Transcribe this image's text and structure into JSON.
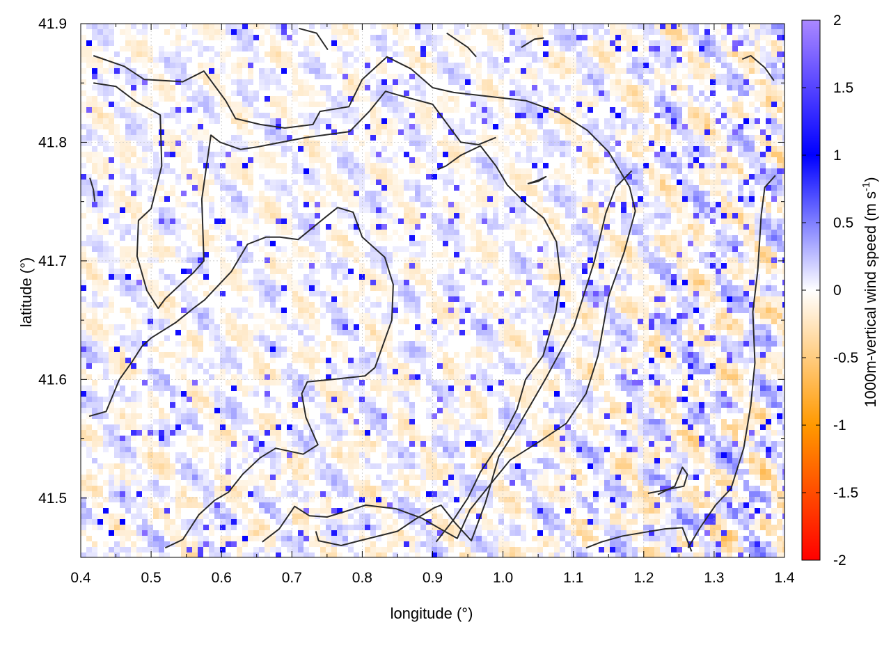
{
  "chart_data": {
    "type": "heatmap",
    "title": "",
    "xlabel": "longitude (°)",
    "ylabel": "latitude (°)",
    "xlim": [
      0.4,
      1.4
    ],
    "ylim": [
      41.45,
      41.9
    ],
    "x_ticks": [
      0.4,
      0.5,
      0.6,
      0.7,
      0.8,
      0.9,
      1.0,
      1.1,
      1.2,
      1.3,
      1.4
    ],
    "y_ticks": [
      41.5,
      41.6,
      41.7,
      41.8,
      41.9
    ],
    "grid": true,
    "colorbar": {
      "label_main": "1000m-vertical wind speed (m s",
      "label_sup": "-1",
      "label_end": ")",
      "range": [
        -2,
        2
      ],
      "ticks": [
        2,
        1.5,
        1,
        0.5,
        0,
        -0.5,
        -1,
        -1.5,
        -2
      ],
      "colors": {
        "-2": "#ff0000",
        "-1": "#ff9900",
        "0": "#ffffff",
        "1": "#0000ff",
        "2": "#aa88ff"
      }
    },
    "contours": [
      [
        [
          0.418,
          41.873
        ],
        [
          0.462,
          41.864
        ],
        [
          0.49,
          41.853
        ],
        [
          0.545,
          41.851
        ],
        [
          0.575,
          41.86
        ],
        [
          0.606,
          41.835
        ],
        [
          0.62,
          41.82
        ],
        [
          0.655,
          41.815
        ],
        [
          0.69,
          41.812
        ],
        [
          0.73,
          41.815
        ],
        [
          0.74,
          41.826
        ],
        [
          0.781,
          41.83
        ],
        [
          0.8,
          41.853
        ],
        [
          0.835,
          41.872
        ],
        [
          0.869,
          41.862
        ],
        [
          0.9,
          41.846
        ],
        [
          0.93,
          41.842
        ],
        [
          0.99,
          41.838
        ],
        [
          1.033,
          41.835
        ],
        [
          1.08,
          41.825
        ],
        [
          1.12,
          41.81
        ],
        [
          1.15,
          41.792
        ],
        [
          1.18,
          41.762
        ],
        [
          1.188,
          41.742
        ],
        [
          1.172,
          41.707
        ],
        [
          1.15,
          41.67
        ],
        [
          1.135,
          41.62
        ],
        [
          1.118,
          41.588
        ],
        [
          1.09,
          41.563
        ],
        [
          1.05,
          41.547
        ],
        [
          1.01,
          41.532
        ],
        [
          0.984,
          41.513
        ],
        [
          0.953,
          41.49
        ],
        [
          0.935,
          41.466
        ],
        [
          0.908,
          41.475
        ],
        [
          0.885,
          41.483
        ],
        [
          0.848,
          41.491
        ],
        [
          0.805,
          41.494
        ],
        [
          0.75,
          41.484
        ],
        [
          0.725,
          41.485
        ],
        [
          0.704,
          41.493
        ],
        [
          0.682,
          41.474
        ],
        [
          0.658,
          41.463
        ]
      ],
      [
        [
          0.418,
          41.85
        ],
        [
          0.45,
          41.847
        ],
        [
          0.479,
          41.834
        ],
        [
          0.513,
          41.823
        ],
        [
          0.514,
          41.802
        ],
        [
          0.515,
          41.78
        ],
        [
          0.5,
          41.744
        ],
        [
          0.482,
          41.734
        ],
        [
          0.48,
          41.704
        ],
        [
          0.494,
          41.675
        ],
        [
          0.51,
          41.66
        ],
        [
          0.52,
          41.668
        ],
        [
          0.545,
          41.682
        ],
        [
          0.56,
          41.69
        ],
        [
          0.575,
          41.7
        ],
        [
          0.572,
          41.752
        ],
        [
          0.585,
          41.806
        ],
        [
          0.598,
          41.8
        ],
        [
          0.627,
          41.794
        ],
        [
          0.65,
          41.796
        ],
        [
          0.72,
          41.804
        ],
        [
          0.782,
          41.809
        ],
        [
          0.81,
          41.826
        ],
        [
          0.833,
          41.843
        ],
        [
          0.85,
          41.84
        ],
        [
          0.9,
          41.832
        ],
        [
          0.94,
          41.8
        ],
        [
          0.965,
          41.798
        ],
        [
          0.99,
          41.804
        ]
      ],
      [
        [
          0.412,
          41.569
        ],
        [
          0.436,
          41.573
        ],
        [
          0.455,
          41.6
        ],
        [
          0.473,
          41.615
        ],
        [
          0.487,
          41.628
        ],
        [
          0.5,
          41.635
        ],
        [
          0.535,
          41.648
        ],
        [
          0.56,
          41.66
        ],
        [
          0.576,
          41.667
        ],
        [
          0.614,
          41.691
        ],
        [
          0.637,
          41.714
        ],
        [
          0.663,
          41.72
        ],
        [
          0.683,
          41.72
        ],
        [
          0.709,
          41.718
        ],
        [
          0.744,
          41.735
        ],
        [
          0.765,
          41.745
        ],
        [
          0.787,
          41.741
        ],
        [
          0.8,
          41.72
        ],
        [
          0.832,
          41.703
        ],
        [
          0.844,
          41.68
        ],
        [
          0.842,
          41.65
        ],
        [
          0.818,
          41.61
        ],
        [
          0.804,
          41.603
        ],
        [
          0.758,
          41.6
        ],
        [
          0.722,
          41.598
        ],
        [
          0.714,
          41.588
        ],
        [
          0.72,
          41.568
        ],
        [
          0.737,
          41.545
        ],
        [
          0.716,
          41.537
        ],
        [
          0.677,
          41.542
        ],
        [
          0.655,
          41.534
        ],
        [
          0.63,
          41.52
        ],
        [
          0.61,
          41.505
        ],
        [
          0.59,
          41.498
        ],
        [
          0.568,
          41.486
        ],
        [
          0.545,
          41.465
        ],
        [
          0.52,
          41.458
        ]
      ],
      [
        [
          0.734,
          41.472
        ],
        [
          0.738,
          41.464
        ],
        [
          0.77,
          41.46
        ],
        [
          0.796,
          41.464
        ],
        [
          0.85,
          41.472
        ],
        [
          0.875,
          41.482
        ],
        [
          0.903,
          41.492
        ],
        [
          0.912,
          41.494
        ],
        [
          0.932,
          41.479
        ],
        [
          0.955,
          41.464
        ],
        [
          0.975,
          41.496
        ],
        [
          0.994,
          41.535
        ],
        [
          1.021,
          41.56
        ],
        [
          1.06,
          41.6
        ],
        [
          1.101,
          41.645
        ],
        [
          1.13,
          41.7
        ],
        [
          1.146,
          41.74
        ],
        [
          1.16,
          41.762
        ],
        [
          1.183,
          41.776
        ]
      ],
      [
        [
          0.907,
          41.777
        ],
        [
          0.919,
          41.78
        ],
        [
          0.94,
          41.789
        ],
        [
          0.968,
          41.797
        ],
        [
          0.99,
          41.78
        ],
        [
          1.006,
          41.764
        ],
        [
          1.033,
          41.748
        ],
        [
          1.058,
          41.736
        ],
        [
          1.076,
          41.716
        ],
        [
          1.082,
          41.685
        ],
        [
          1.075,
          41.657
        ],
        [
          1.057,
          41.62
        ],
        [
          1.032,
          41.6
        ],
        [
          1.02,
          41.575
        ],
        [
          0.995,
          41.546
        ],
        [
          0.968,
          41.522
        ],
        [
          0.95,
          41.5
        ],
        [
          0.93,
          41.482
        ],
        [
          0.905,
          41.463
        ]
      ],
      [
        [
          1.118,
          41.458
        ],
        [
          1.14,
          41.463
        ],
        [
          1.17,
          41.468
        ],
        [
          1.2,
          41.471
        ],
        [
          1.23,
          41.474
        ],
        [
          1.255,
          41.475
        ],
        [
          1.268,
          41.455
        ]
      ],
      [
        [
          1.206,
          41.504
        ],
        [
          1.232,
          41.507
        ],
        [
          1.257,
          41.51
        ],
        [
          1.262,
          41.52
        ],
        [
          1.255,
          41.526
        ],
        [
          1.244,
          41.51
        ],
        [
          1.22,
          41.503
        ]
      ],
      [
        [
          1.035,
          41.765
        ],
        [
          1.05,
          41.767
        ],
        [
          1.061,
          41.771
        ],
        [
          1.05,
          41.768
        ],
        [
          1.035,
          41.765
        ]
      ],
      [
        [
          1.263,
          41.458
        ],
        [
          1.28,
          41.475
        ],
        [
          1.302,
          41.494
        ],
        [
          1.324,
          41.508
        ],
        [
          1.342,
          41.542
        ],
        [
          1.352,
          41.578
        ],
        [
          1.358,
          41.614
        ],
        [
          1.355,
          41.657
        ],
        [
          1.362,
          41.692
        ],
        [
          1.367,
          41.739
        ],
        [
          1.372,
          41.762
        ],
        [
          1.387,
          41.772
        ]
      ],
      [
        [
          1.34,
          41.87
        ],
        [
          1.352,
          41.873
        ],
        [
          1.372,
          41.863
        ],
        [
          1.385,
          41.852
        ]
      ],
      [
        [
          0.92,
          41.892
        ],
        [
          0.95,
          41.88
        ],
        [
          0.962,
          41.872
        ]
      ],
      [
        [
          0.71,
          41.896
        ],
        [
          0.735,
          41.892
        ],
        [
          0.751,
          41.878
        ]
      ],
      [
        [
          1.026,
          41.88
        ],
        [
          1.045,
          41.887
        ],
        [
          1.058,
          41.888
        ]
      ],
      [
        [
          0.413,
          41.77
        ],
        [
          0.418,
          41.76
        ],
        [
          0.42,
          41.75
        ]
      ]
    ]
  }
}
